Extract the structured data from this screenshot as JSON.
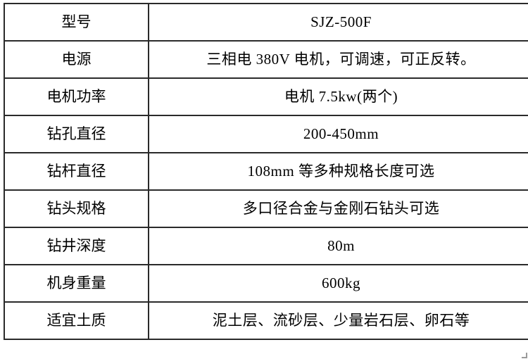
{
  "page": {
    "background_color": "#ffffff",
    "text_color": "#000000",
    "border_color": "#2a2a2a"
  },
  "table": {
    "rows": [
      {
        "label": "型号",
        "value": "SJZ-500F"
      },
      {
        "label": "电源",
        "value": "三相电 380V 电机，可调速，可正反转。"
      },
      {
        "label": "电机功率",
        "value": "电机 7.5kw(两个)"
      },
      {
        "label": "钻孔直径",
        "value": "200-450mm"
      },
      {
        "label": "钻杆直径",
        "value": "108mm 等多种规格长度可选"
      },
      {
        "label": "钻头规格",
        "value": "多口径合金与金刚石钻头可选"
      },
      {
        "label": "钻井深度",
        "value": "80m"
      },
      {
        "label": "机身重量",
        "value": "600kg"
      },
      {
        "label": "适宜土质",
        "value": "泥土层、流砂层、少量岩石层、卵石等"
      }
    ]
  }
}
